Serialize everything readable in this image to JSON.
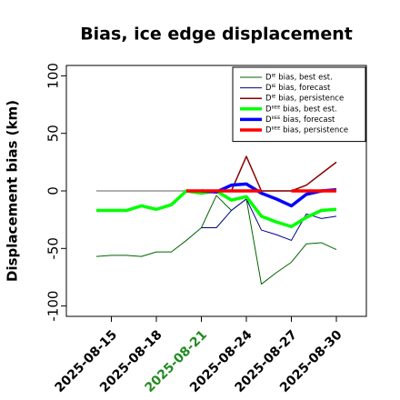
{
  "chart_data": {
    "type": "line",
    "title": "Bias, ice edge displacement",
    "y_label": "Displacement bias (km)",
    "x": [
      "2025-08-14",
      "2025-08-15",
      "2025-08-16",
      "2025-08-17",
      "2025-08-18",
      "2025-08-19",
      "2025-08-20",
      "2025-08-21",
      "2025-08-22",
      "2025-08-23",
      "2025-08-24",
      "2025-08-25",
      "2025-08-26",
      "2025-08-27",
      "2025-08-28",
      "2025-08-29",
      "2025-08-30"
    ],
    "series": [
      {
        "name": "Dᴵᴱ bias, best est.",
        "color": "#006400",
        "width": 1,
        "values": [
          -57,
          -56,
          -56,
          -57,
          -53,
          -53,
          -43,
          -32,
          -4,
          -17,
          -7,
          -81,
          -71,
          -62,
          -46,
          -45,
          -51
        ]
      },
      {
        "name": "Dᴵᴱ bias, forecast",
        "color": "#00008b",
        "width": 1,
        "values": [
          null,
          null,
          null,
          null,
          null,
          null,
          null,
          -32,
          -32,
          -17,
          -7,
          -34,
          -38,
          -43,
          -20,
          -24,
          -22
        ]
      },
      {
        "name": "Dᴵᴱ bias, persistence",
        "color": "#8b0000",
        "width": 1.5,
        "values": [
          null,
          null,
          null,
          null,
          null,
          null,
          0,
          0,
          0,
          0,
          30,
          0,
          0,
          0,
          5,
          15,
          25
        ]
      },
      {
        "name": "Dᴵᴵᴱᴱ bias, best est.",
        "color": "#00ff00",
        "width": 3.5,
        "values": [
          -17,
          -17,
          -17,
          -13,
          -16,
          -12,
          0,
          -2,
          0,
          -8,
          -5,
          -22,
          -27,
          -31,
          -23,
          -17,
          -16
        ]
      },
      {
        "name": "Dᴵᴵᴱᴱ bias, forecast",
        "color": "#0000ff",
        "width": 3.5,
        "values": [
          null,
          null,
          null,
          null,
          null,
          null,
          null,
          0,
          -1,
          5,
          6,
          -2,
          -7,
          -13,
          -3,
          0,
          1
        ]
      },
      {
        "name": "Dᴵᴵᴱᴱ bias, persistence",
        "color": "#ff0000",
        "width": 3.5,
        "values": [
          null,
          null,
          null,
          null,
          null,
          null,
          0,
          0,
          0,
          0,
          0,
          0,
          null,
          0,
          0,
          0,
          0
        ]
      }
    ],
    "reference_line": 0,
    "reference_color": "#808080",
    "xlim": [
      "2025-08-12",
      "2025-09-01"
    ],
    "xticks": [
      "2025-08-15",
      "2025-08-18",
      "2025-08-21",
      "2025-08-24",
      "2025-08-27",
      "2025-08-30"
    ],
    "xtick_colors": [
      "#000000",
      "#000000",
      "#228b22",
      "#000000",
      "#000000",
      "#000000"
    ],
    "ylim": [
      -109,
      109
    ],
    "yticks": [
      -100,
      -50,
      0,
      50,
      100
    ],
    "legend": "upper right"
  }
}
